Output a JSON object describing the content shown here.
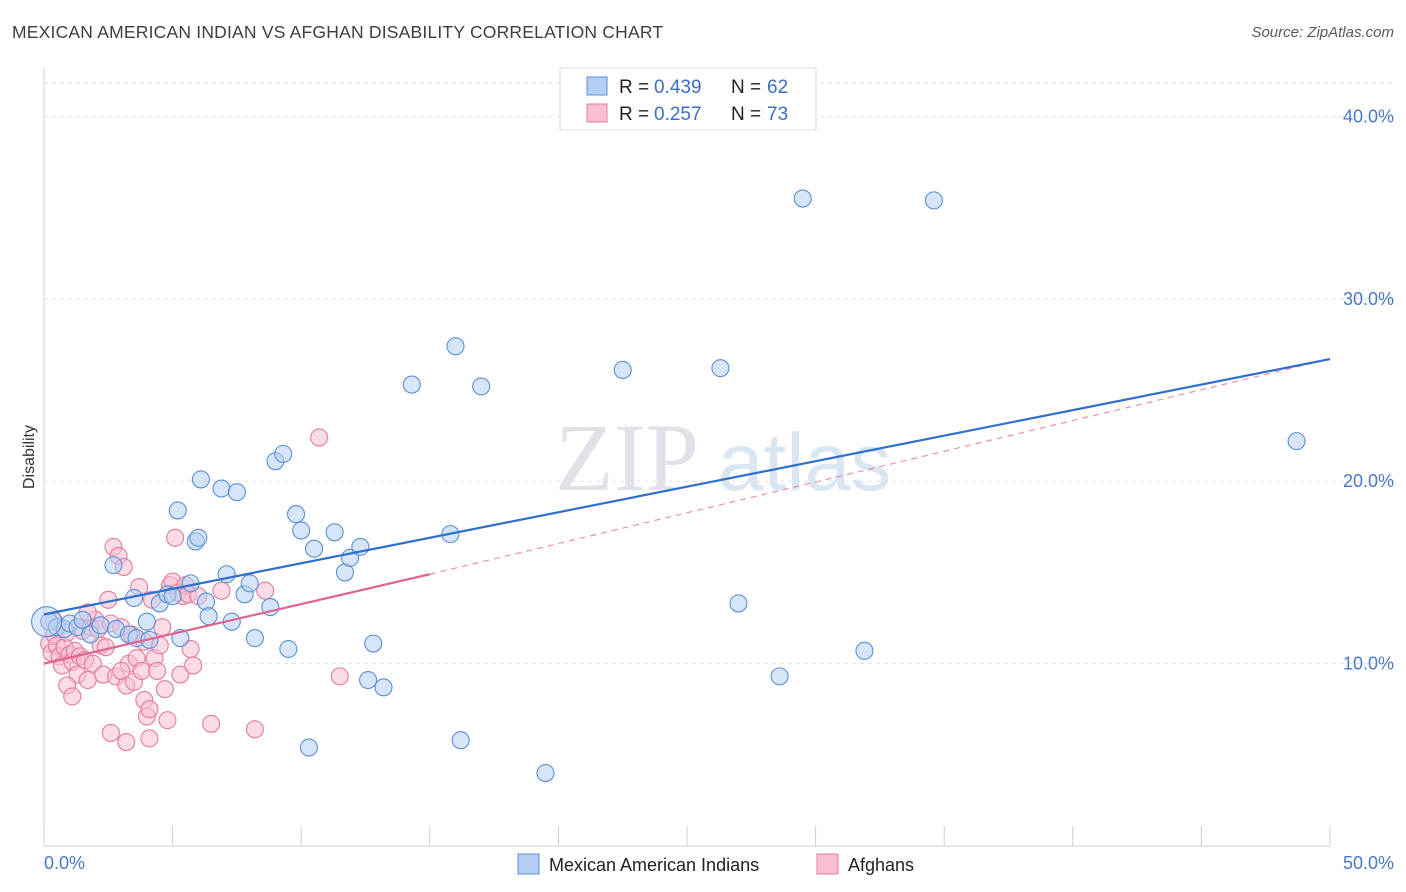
{
  "header": {
    "title": "MEXICAN AMERICAN INDIAN VS AFGHAN DISABILITY CORRELATION CHART",
    "source": "Source: ZipAtlas.com"
  },
  "legend": {
    "rows": [
      {
        "r_label": "R =",
        "r_value": "0.439",
        "n_label": "N =",
        "n_value": "62"
      },
      {
        "r_label": "R =",
        "r_value": "0.257",
        "n_label": "N =",
        "n_value": "73"
      }
    ]
  },
  "watermark": {
    "zip": "ZIP",
    "atlas": "atlas"
  },
  "colors": {
    "blue_fill": "#b4cff3",
    "blue_stroke": "#5b8fd6",
    "blue_line": "#2f6fcd",
    "pink_fill": "#f7bfd0",
    "pink_stroke": "#e57aa0",
    "pink_line": "#e0648f",
    "grid": "#dde1e6",
    "tick_label": "#4a78c4"
  },
  "chart_data": {
    "type": "scatter",
    "title": "MEXICAN AMERICAN INDIAN VS AFGHAN DISABILITY CORRELATION CHART",
    "xlabel": "",
    "ylabel": "Disability",
    "xlim": [
      0,
      50
    ],
    "ylim": [
      0,
      42
    ],
    "x_tick_labels": [
      "0.0%",
      "50.0%"
    ],
    "y_ticks": [
      {
        "value": 10,
        "label": "10.0%"
      },
      {
        "value": 20,
        "label": "20.0%"
      },
      {
        "value": 30,
        "label": "30.0%"
      },
      {
        "value": 40,
        "label": "40.0%"
      }
    ],
    "grid": true,
    "legend_position": "top-center",
    "series": [
      {
        "name": "Mexican American Indians",
        "r": 0.439,
        "n": 62,
        "trend": {
          "x0": 0,
          "y0": 12.7,
          "x1": 50,
          "y1": 26.7,
          "dashed_from": 50
        },
        "points": [
          [
            0.2,
            12.3
          ],
          [
            0.5,
            12.0
          ],
          [
            0.8,
            11.9
          ],
          [
            1.0,
            12.2
          ],
          [
            1.3,
            12.0
          ],
          [
            1.5,
            12.4
          ],
          [
            1.8,
            11.6
          ],
          [
            2.2,
            12.1
          ],
          [
            2.8,
            11.9
          ],
          [
            3.3,
            11.6
          ],
          [
            3.6,
            11.4
          ],
          [
            2.7,
            15.4
          ],
          [
            3.5,
            13.6
          ],
          [
            4.0,
            12.3
          ],
          [
            4.1,
            11.3
          ],
          [
            4.5,
            13.3
          ],
          [
            4.8,
            13.8
          ],
          [
            5.0,
            13.7
          ],
          [
            5.2,
            18.4
          ],
          [
            5.3,
            11.4
          ],
          [
            5.7,
            14.4
          ],
          [
            5.9,
            16.7
          ],
          [
            6.0,
            16.9
          ],
          [
            6.1,
            20.1
          ],
          [
            6.3,
            13.4
          ],
          [
            6.4,
            12.6
          ],
          [
            6.9,
            19.6
          ],
          [
            7.1,
            14.9
          ],
          [
            7.3,
            12.3
          ],
          [
            7.5,
            19.4
          ],
          [
            7.8,
            13.8
          ],
          [
            8.0,
            14.4
          ],
          [
            8.2,
            11.4
          ],
          [
            8.8,
            13.1
          ],
          [
            9.0,
            21.1
          ],
          [
            9.3,
            21.5
          ],
          [
            9.5,
            10.8
          ],
          [
            9.8,
            18.2
          ],
          [
            10.0,
            17.3
          ],
          [
            10.3,
            5.4
          ],
          [
            10.5,
            16.3
          ],
          [
            11.3,
            17.2
          ],
          [
            11.7,
            15.0
          ],
          [
            11.9,
            15.8
          ],
          [
            12.3,
            16.4
          ],
          [
            12.6,
            9.1
          ],
          [
            12.8,
            11.1
          ],
          [
            13.2,
            8.7
          ],
          [
            14.3,
            25.3
          ],
          [
            15.8,
            17.1
          ],
          [
            16.0,
            27.4
          ],
          [
            16.2,
            5.8
          ],
          [
            17.0,
            25.2
          ],
          [
            19.5,
            4.0
          ],
          [
            22.5,
            26.1
          ],
          [
            26.3,
            26.2
          ],
          [
            27.0,
            13.3
          ],
          [
            28.6,
            9.3
          ],
          [
            29.5,
            35.5
          ],
          [
            31.9,
            10.7
          ],
          [
            34.6,
            35.4
          ],
          [
            48.7,
            22.2
          ]
        ]
      },
      {
        "name": "Afghans",
        "r": 0.257,
        "n": 73,
        "trend": {
          "x0": 0,
          "y0": 10.0,
          "x1": 15,
          "y1": 14.9,
          "dashed_to": [
            50,
            26.7
          ]
        },
        "points": [
          [
            0.2,
            11.1
          ],
          [
            0.3,
            10.6
          ],
          [
            0.4,
            11.6
          ],
          [
            0.5,
            11.0
          ],
          [
            0.6,
            10.4
          ],
          [
            0.7,
            9.9
          ],
          [
            0.8,
            10.9
          ],
          [
            0.9,
            11.7
          ],
          [
            1.0,
            10.5
          ],
          [
            1.1,
            10.1
          ],
          [
            1.2,
            10.7
          ],
          [
            1.3,
            9.4
          ],
          [
            1.4,
            10.4
          ],
          [
            1.5,
            11.8
          ],
          [
            1.6,
            10.2
          ],
          [
            1.7,
            9.1
          ],
          [
            1.8,
            12.0
          ],
          [
            1.9,
            10.0
          ],
          [
            2.0,
            12.4
          ],
          [
            2.1,
            11.9
          ],
          [
            2.2,
            11.0
          ],
          [
            2.3,
            9.4
          ],
          [
            2.4,
            10.9
          ],
          [
            2.5,
            13.5
          ],
          [
            2.6,
            12.2
          ],
          [
            2.7,
            16.4
          ],
          [
            2.8,
            9.3
          ],
          [
            2.9,
            15.9
          ],
          [
            3.0,
            12.0
          ],
          [
            3.1,
            15.3
          ],
          [
            3.2,
            8.8
          ],
          [
            3.3,
            10.0
          ],
          [
            3.4,
            11.6
          ],
          [
            3.5,
            9.0
          ],
          [
            3.6,
            10.3
          ],
          [
            3.7,
            14.2
          ],
          [
            3.8,
            9.6
          ],
          [
            3.9,
            8.0
          ],
          [
            4.0,
            7.1
          ],
          [
            4.1,
            7.5
          ],
          [
            4.2,
            13.5
          ],
          [
            4.3,
            10.3
          ],
          [
            4.4,
            9.6
          ],
          [
            4.5,
            11.0
          ],
          [
            4.6,
            12.0
          ],
          [
            4.7,
            8.6
          ],
          [
            4.8,
            6.9
          ],
          [
            4.9,
            14.3
          ],
          [
            5.0,
            14.5
          ],
          [
            5.1,
            16.9
          ],
          [
            5.2,
            13.9
          ],
          [
            5.3,
            9.4
          ],
          [
            5.4,
            13.7
          ],
          [
            5.5,
            14.3
          ],
          [
            5.6,
            13.8
          ],
          [
            5.7,
            10.8
          ],
          [
            5.8,
            9.9
          ],
          [
            6.0,
            13.7
          ],
          [
            6.5,
            6.7
          ],
          [
            6.9,
            14.0
          ],
          [
            0.9,
            8.8
          ],
          [
            1.1,
            8.2
          ],
          [
            2.6,
            6.2
          ],
          [
            3.2,
            5.7
          ],
          [
            3.0,
            9.6
          ],
          [
            3.9,
            11.2
          ],
          [
            4.1,
            5.9
          ],
          [
            8.2,
            6.4
          ],
          [
            8.6,
            14.0
          ],
          [
            10.7,
            22.4
          ],
          [
            11.5,
            9.3
          ],
          [
            0.4,
            12.3
          ],
          [
            1.7,
            12.8
          ]
        ]
      }
    ]
  }
}
